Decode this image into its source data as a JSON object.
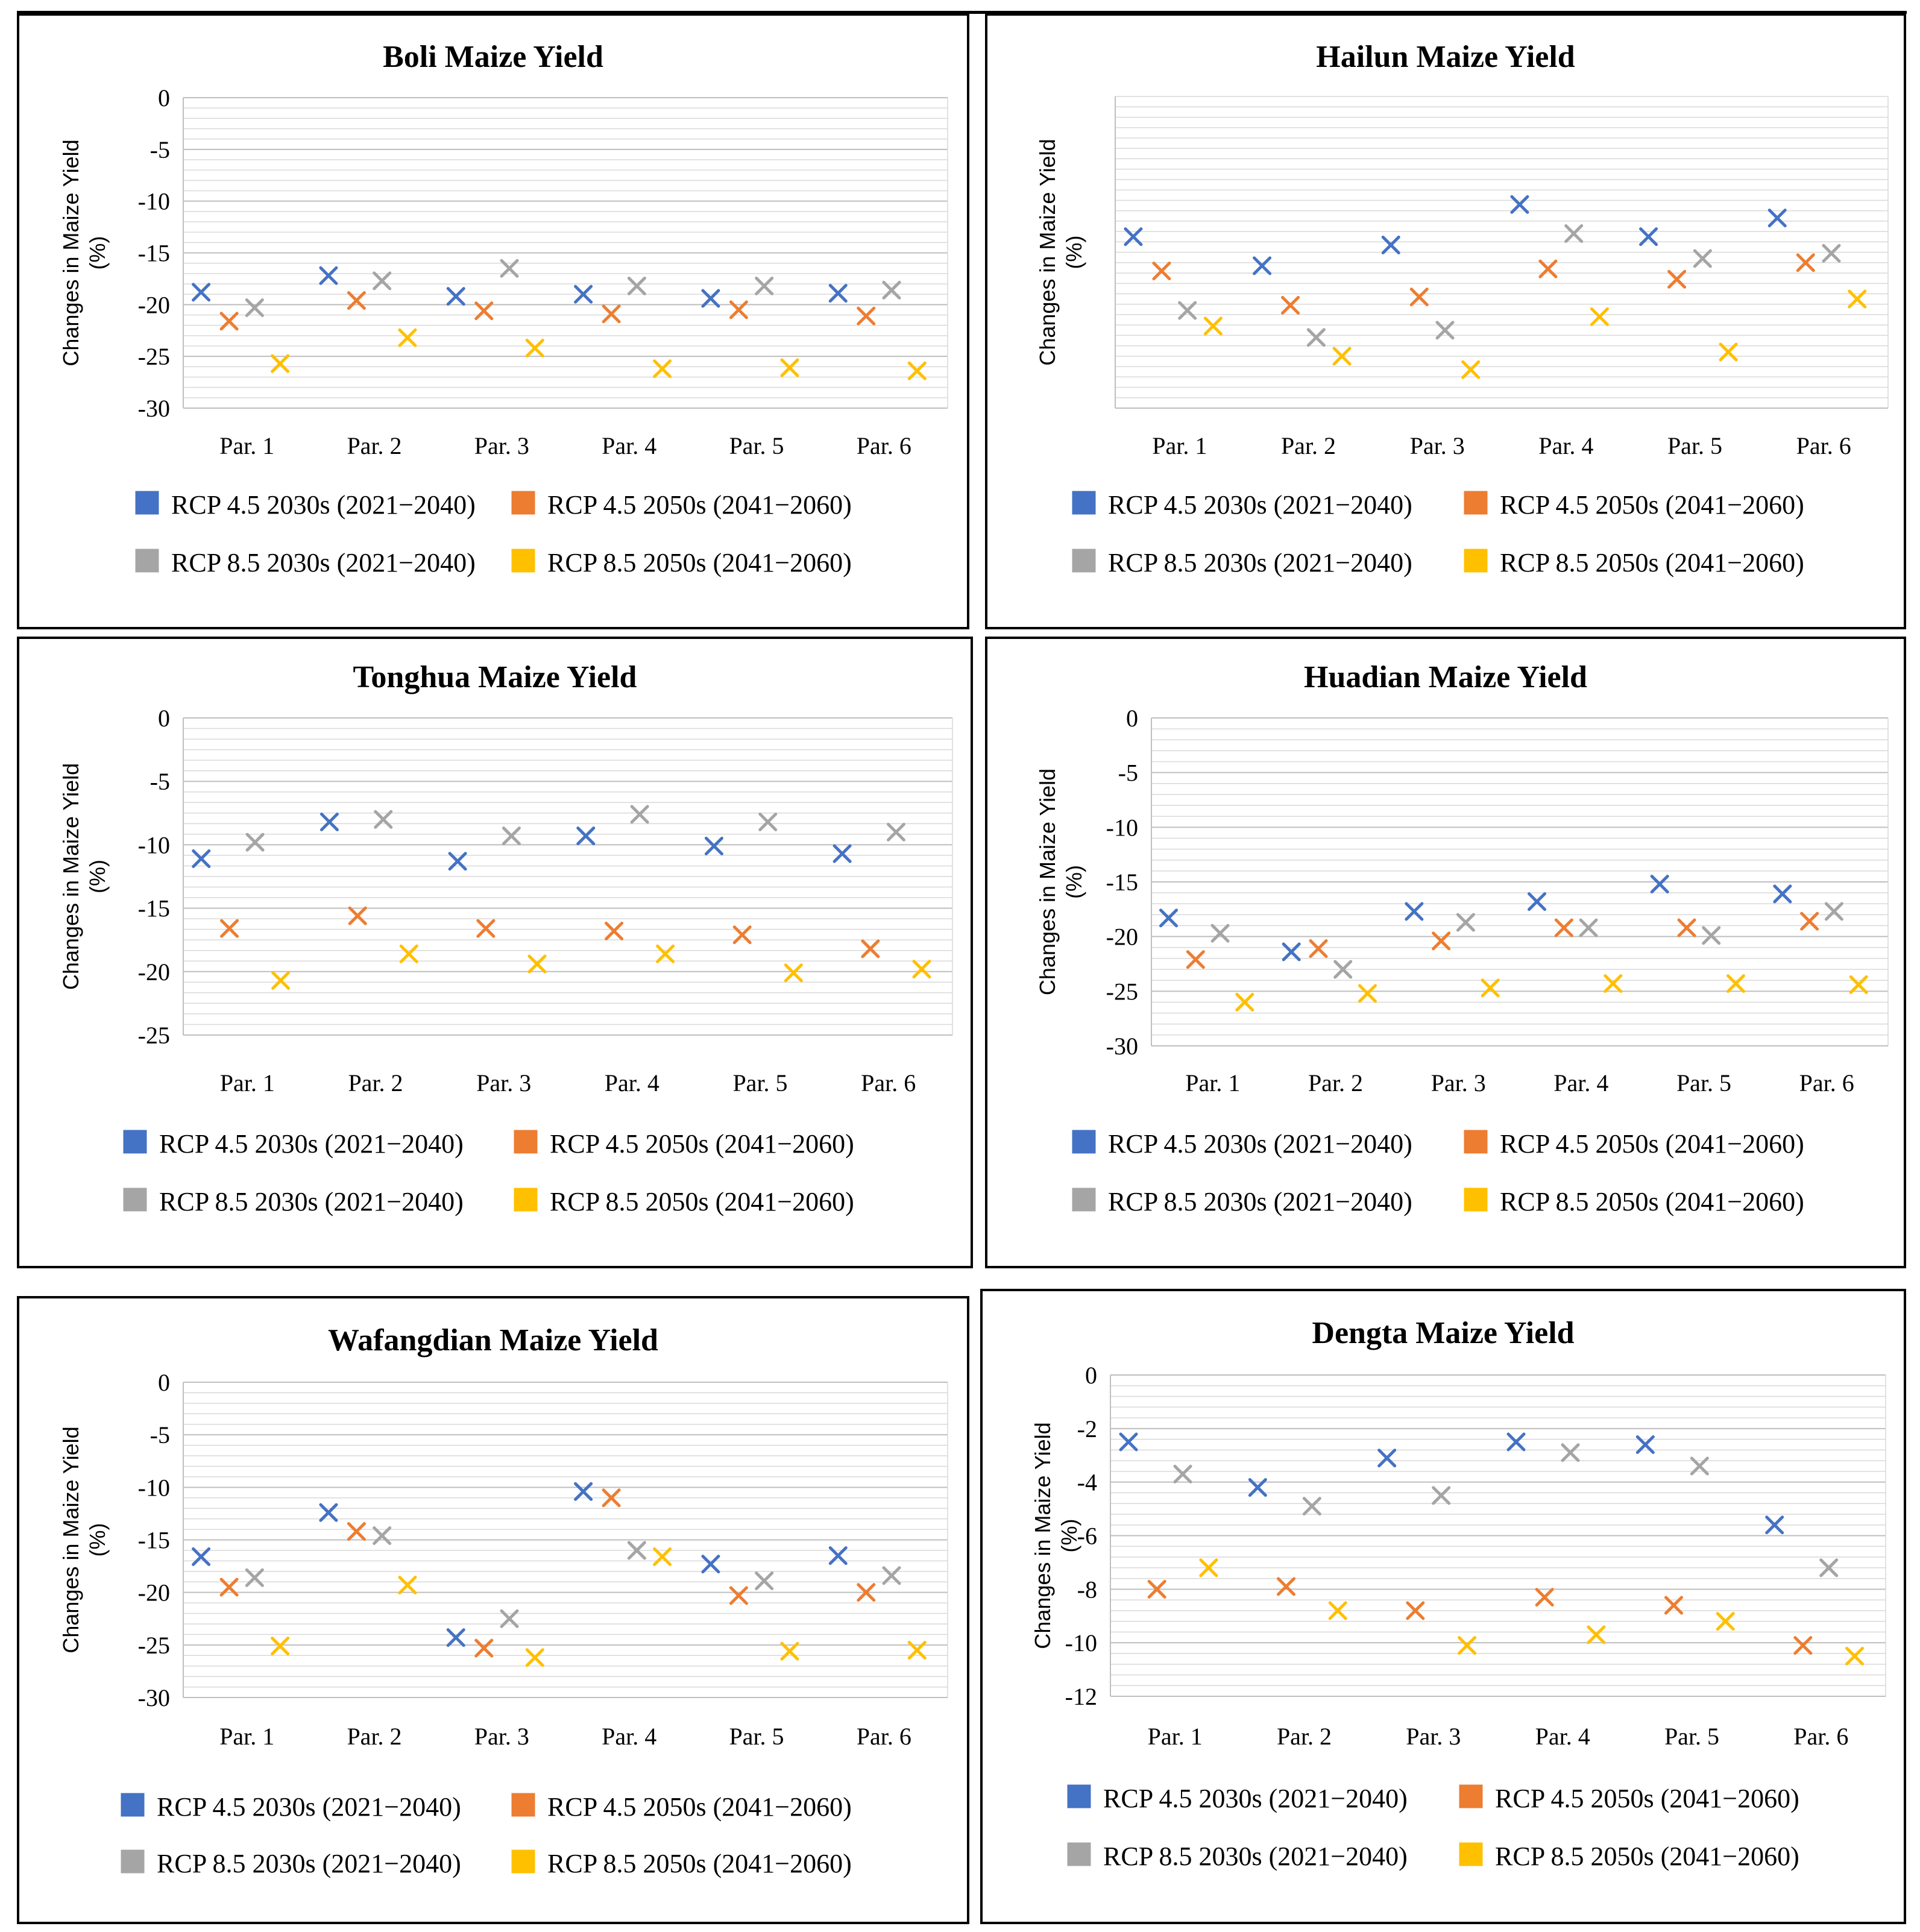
{
  "colors": {
    "rcp45_2030s": "#4472C4",
    "rcp45_2050s": "#ED7D31",
    "rcp85_2030s": "#A5A5A5",
    "rcp85_2050s": "#FFC000"
  },
  "legend": [
    {
      "key": "rcp45_2030s",
      "label": "RCP 4.5 2030s (2021−2040)"
    },
    {
      "key": "rcp45_2050s",
      "label": "RCP 4.5 2050s (2041−2060)"
    },
    {
      "key": "rcp85_2030s",
      "label": "RCP 8.5 2030s (2021−2040)"
    },
    {
      "key": "rcp85_2050s",
      "label": "RCP 8.5 2050s (2041−2060)"
    }
  ],
  "chart_data": [
    {
      "type": "scatter",
      "title": "Boli Maize Yield",
      "ylabel": "Changes in Maize Yield (%)",
      "ylim": [
        -30,
        0
      ],
      "yticks": [
        0,
        -5,
        -10,
        -15,
        -20,
        -25,
        -30
      ],
      "show_tick_labels": true,
      "categories": [
        "Par. 1",
        "Par. 2",
        "Par. 3",
        "Par. 4",
        "Par. 5",
        "Par. 6"
      ],
      "series": [
        {
          "key": "rcp45_2030s",
          "name": "RCP 4.5 2030s (2021−2040)",
          "values": [
            -18.8,
            -17.2,
            -19.2,
            -19.0,
            -19.4,
            -18.9
          ]
        },
        {
          "key": "rcp45_2050s",
          "name": "RCP 4.5 2050s (2041−2060)",
          "values": [
            -21.6,
            -19.6,
            -20.6,
            -20.9,
            -20.5,
            -21.1
          ]
        },
        {
          "key": "rcp85_2030s",
          "name": "RCP 8.5 2030s (2021−2040)",
          "values": [
            -20.3,
            -17.7,
            -16.5,
            -18.2,
            -18.2,
            -18.6
          ]
        },
        {
          "key": "rcp85_2050s",
          "name": "RCP 8.5 2050s (2041−2060)",
          "values": [
            -25.7,
            -23.2,
            -24.2,
            -26.2,
            -26.1,
            -26.4
          ]
        }
      ]
    },
    {
      "type": "scatter",
      "title": "Hailun Maize Yield",
      "ylabel": "Changes in Maize Yield (%)",
      "ylim": [
        -30,
        0
      ],
      "yticks": [],
      "show_tick_labels": false,
      "categories": [
        "Par. 1",
        "Par. 2",
        "Par. 3",
        "Par. 4",
        "Par. 5",
        "Par. 6"
      ],
      "series": [
        {
          "key": "rcp45_2030s",
          "name": "RCP 4.5 2030s (2021−2040)",
          "values": [
            -13.5,
            -16.3,
            -14.3,
            -10.4,
            -13.5,
            -11.7
          ]
        },
        {
          "key": "rcp45_2050s",
          "name": "RCP 4.5 2050s (2041−2060)",
          "values": [
            -16.8,
            -20.1,
            -19.3,
            -16.6,
            -17.6,
            -16.0
          ]
        },
        {
          "key": "rcp85_2030s",
          "name": "RCP 8.5 2030s (2021−2040)",
          "values": [
            -20.6,
            -23.2,
            -22.5,
            -13.2,
            -15.6,
            -15.1
          ]
        },
        {
          "key": "rcp85_2050s",
          "name": "RCP 8.5 2050s (2041−2060)",
          "values": [
            -22.1,
            -25.0,
            -26.3,
            -21.2,
            -24.6,
            -19.5
          ]
        }
      ]
    },
    {
      "type": "scatter",
      "title": "Tonghua Maize Yield",
      "ylabel": "Changes in Maize Yield (%)",
      "ylim": [
        -25,
        0
      ],
      "yticks": [
        0,
        -5,
        -10,
        -15,
        -20,
        -25
      ],
      "show_tick_labels": true,
      "categories": [
        "Par. 1",
        "Par. 2",
        "Par. 3",
        "Par. 4",
        "Par. 5",
        "Par. 6"
      ],
      "series": [
        {
          "key": "rcp45_2030s",
          "name": "RCP 4.5 2030s (2021−2040)",
          "values": [
            -11.1,
            -8.2,
            -11.3,
            -9.3,
            -10.1,
            -10.7
          ]
        },
        {
          "key": "rcp45_2050s",
          "name": "RCP 4.5 2050s (2041−2060)",
          "values": [
            -16.6,
            -15.6,
            -16.6,
            -16.8,
            -17.1,
            -18.2
          ]
        },
        {
          "key": "rcp85_2030s",
          "name": "RCP 8.5 2030s (2021−2040)",
          "values": [
            -9.8,
            -8.0,
            -9.3,
            -7.6,
            -8.2,
            -9.0
          ]
        },
        {
          "key": "rcp85_2050s",
          "name": "RCP 8.5 2050s (2041−2060)",
          "values": [
            -20.7,
            -18.6,
            -19.4,
            -18.6,
            -20.1,
            -19.8
          ]
        }
      ]
    },
    {
      "type": "scatter",
      "title": "Huadian Maize Yield",
      "ylabel": "Changes in Maize Yield (%)",
      "ylim": [
        -30,
        0
      ],
      "yticks": [
        0,
        -5,
        -10,
        -15,
        -20,
        -25,
        -30
      ],
      "show_tick_labels": true,
      "categories": [
        "Par. 1",
        "Par. 2",
        "Par. 3",
        "Par. 4",
        "Par. 5",
        "Par. 6"
      ],
      "series": [
        {
          "key": "rcp45_2030s",
          "name": "RCP 4.5 2030s (2021−2040)",
          "values": [
            -18.3,
            -21.4,
            -17.7,
            -16.8,
            -15.2,
            -16.1
          ]
        },
        {
          "key": "rcp45_2050s",
          "name": "RCP 4.5 2050s (2041−2060)",
          "values": [
            -22.1,
            -21.1,
            -20.4,
            -19.2,
            -19.2,
            -18.6
          ]
        },
        {
          "key": "rcp85_2030s",
          "name": "RCP 8.5 2030s (2021−2040)",
          "values": [
            -19.7,
            -23.0,
            -18.7,
            -19.2,
            -19.9,
            -17.7
          ]
        },
        {
          "key": "rcp85_2050s",
          "name": "RCP 8.5 2050s (2041−2060)",
          "values": [
            -26.0,
            -25.2,
            -24.7,
            -24.3,
            -24.3,
            -24.4
          ]
        }
      ]
    },
    {
      "type": "scatter",
      "title": "Wafangdian Maize Yield",
      "ylabel": "Changes in Maize Yield (%)",
      "ylim": [
        -30,
        0
      ],
      "yticks": [
        0,
        -5,
        -10,
        -15,
        -20,
        -25,
        -30
      ],
      "show_tick_labels": true,
      "categories": [
        "Par. 1",
        "Par. 2",
        "Par. 3",
        "Par. 4",
        "Par. 5",
        "Par. 6"
      ],
      "series": [
        {
          "key": "rcp45_2030s",
          "name": "RCP 4.5 2030s (2021−2040)",
          "values": [
            -16.6,
            -12.4,
            -24.3,
            -10.4,
            -17.3,
            -16.5
          ]
        },
        {
          "key": "rcp45_2050s",
          "name": "RCP 4.5 2050s (2041−2060)",
          "values": [
            -19.5,
            -14.2,
            -25.3,
            -11.0,
            -20.3,
            -20.0
          ]
        },
        {
          "key": "rcp85_2030s",
          "name": "RCP 8.5 2030s (2021−2040)",
          "values": [
            -18.6,
            -14.6,
            -22.5,
            -16.0,
            -18.9,
            -18.4
          ]
        },
        {
          "key": "rcp85_2050s",
          "name": "RCP 8.5 2050s (2041−2060)",
          "values": [
            -25.1,
            -19.3,
            -26.2,
            -16.6,
            -25.6,
            -25.5
          ]
        }
      ]
    },
    {
      "type": "scatter",
      "title": "Dengta Maize Yield",
      "ylabel": "Changes in Maize Yield (%)",
      "ylim": [
        -12,
        0
      ],
      "yticks": [
        0,
        -2,
        -4,
        -6,
        -8,
        -10,
        -12
      ],
      "show_tick_labels": true,
      "categories": [
        "Par. 1",
        "Par. 2",
        "Par. 3",
        "Par. 4",
        "Par. 5",
        "Par. 6"
      ],
      "series": [
        {
          "key": "rcp45_2030s",
          "name": "RCP 4.5 2030s (2021−2040)",
          "values": [
            -2.5,
            -4.2,
            -3.1,
            -2.5,
            -2.6,
            -5.6
          ]
        },
        {
          "key": "rcp45_2050s",
          "name": "RCP 4.5 2050s (2041−2060)",
          "values": [
            -8.0,
            -7.9,
            -8.8,
            -8.3,
            -8.6,
            -10.1
          ]
        },
        {
          "key": "rcp85_2030s",
          "name": "RCP 8.5 2030s (2021−2040)",
          "values": [
            -3.7,
            -4.9,
            -4.5,
            -2.9,
            -3.4,
            -7.2
          ]
        },
        {
          "key": "rcp85_2050s",
          "name": "RCP 8.5 2050s (2041−2060)",
          "values": [
            -7.2,
            -8.8,
            -10.1,
            -9.7,
            -9.2,
            -10.5
          ]
        }
      ]
    }
  ]
}
